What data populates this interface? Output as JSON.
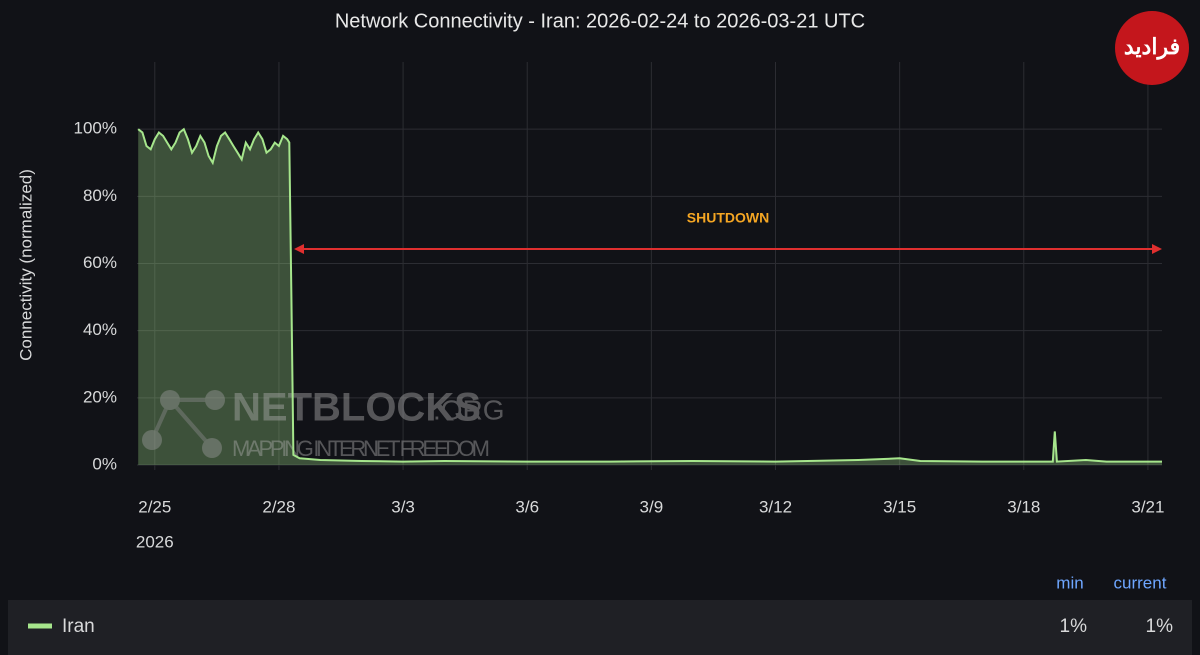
{
  "chart_data": {
    "type": "line",
    "title": "Network Connectivity - Iran: 2026-02-24 to 2026-03-21 UTC",
    "y_label": "Connectivity (normalized)",
    "x_year_label": "2026",
    "annotation": "SHUTDOWN",
    "watermark": {
      "name": "NETBLOCKS",
      "suffix": ".ORG",
      "tagline": "MAPPING INTERNET FREEDOM"
    },
    "logo": "فرادید",
    "x": [
      0.6,
      0.7,
      0.8,
      0.9,
      1.0,
      1.1,
      1.2,
      1.3,
      1.4,
      1.5,
      1.6,
      1.7,
      1.8,
      1.9,
      2.0,
      2.1,
      2.2,
      2.3,
      2.4,
      2.5,
      2.6,
      2.7,
      2.8,
      2.9,
      3.0,
      3.1,
      3.2,
      3.3,
      3.4,
      3.5,
      3.6,
      3.7,
      3.8,
      3.9,
      4.0,
      4.1,
      4.2,
      4.25,
      4.3,
      4.35,
      4.5,
      5,
      6,
      7,
      8,
      10,
      12,
      14,
      16,
      18,
      19,
      19.5,
      21,
      22.7,
      22.75,
      22.8,
      23.5,
      24,
      25,
      25.34
    ],
    "xlim": [
      0.57,
      25.34
    ],
    "xticks": [
      {
        "value": 1,
        "label": "2/25"
      },
      {
        "value": 4,
        "label": "2/28"
      },
      {
        "value": 7,
        "label": "3/3"
      },
      {
        "value": 10,
        "label": "3/6"
      },
      {
        "value": 13,
        "label": "3/9"
      },
      {
        "value": 16,
        "label": "3/12"
      },
      {
        "value": 19,
        "label": "3/15"
      },
      {
        "value": 22,
        "label": "3/18"
      },
      {
        "value": 25,
        "label": "3/21"
      }
    ],
    "ylim": [
      0,
      120
    ],
    "yticks": [
      {
        "value": 0,
        "label": "0%"
      },
      {
        "value": 20,
        "label": "20%"
      },
      {
        "value": 40,
        "label": "40%"
      },
      {
        "value": 60,
        "label": "60%"
      },
      {
        "value": 80,
        "label": "80%"
      },
      {
        "value": 100,
        "label": "100%"
      }
    ],
    "grid": true,
    "series": [
      {
        "name": "Iran",
        "color": "#a6e68c",
        "values": [
          100,
          99,
          95,
          94,
          97,
          99,
          98,
          96,
          94,
          96,
          99,
          100,
          97,
          93,
          95,
          98,
          96,
          92,
          90,
          95,
          98,
          99,
          97,
          95,
          93,
          91,
          96,
          94,
          97,
          99,
          97,
          93,
          94,
          96,
          95,
          98,
          97,
          96,
          50,
          3,
          2,
          1.5,
          1.2,
          1,
          1.2,
          1,
          1,
          1.2,
          1,
          1.5,
          2,
          1.2,
          1,
          1,
          10,
          1,
          1.5,
          1,
          1,
          1
        ]
      }
    ],
    "legend_table": {
      "columns": [
        "min",
        "current"
      ],
      "cells": [
        "1%",
        "1%"
      ]
    }
  }
}
